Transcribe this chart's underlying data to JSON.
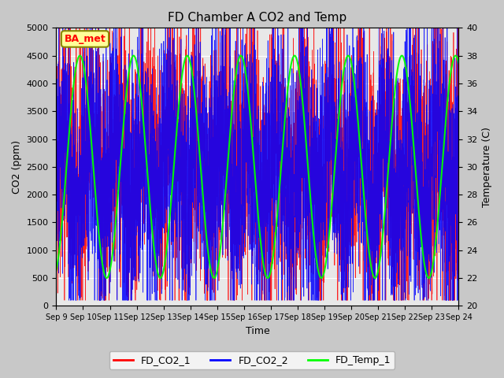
{
  "title": "FD Chamber A CO2 and Temp",
  "xlabel": "Time",
  "ylabel_left": "CO2 (ppm)",
  "ylabel_right": "Temperature (C)",
  "ylim_left": [
    0,
    5000
  ],
  "ylim_right": [
    20,
    40
  ],
  "x_tick_labels": [
    "Sep 9",
    "Sep 10",
    "Sep 11",
    "Sep 12",
    "Sep 13",
    "Sep 14",
    "Sep 15",
    "Sep 16",
    "Sep 17",
    "Sep 18",
    "Sep 19",
    "Sep 20",
    "Sep 21",
    "Sep 22",
    "Sep 23",
    "Sep 24"
  ],
  "legend_labels": [
    "FD_CO2_1",
    "FD_CO2_2",
    "FD_Temp_1"
  ],
  "colors": [
    "red",
    "blue",
    "lime"
  ],
  "annotation_text": "BA_met",
  "annotation_color": "red",
  "annotation_bg": "#ffff99",
  "background_color": "#c8c8c8",
  "plot_bg": "#e8e8e8",
  "n_points": 3600,
  "seed": 42
}
